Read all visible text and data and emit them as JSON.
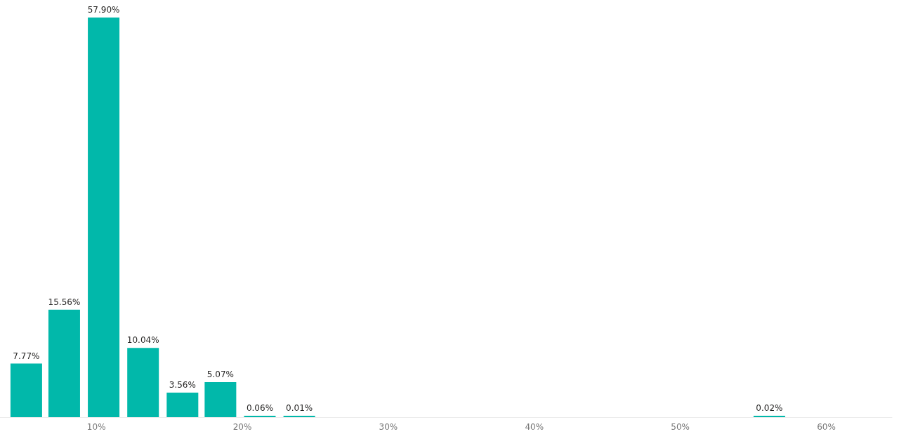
{
  "chart_data": {
    "type": "bar",
    "x": [
      5.2,
      7.8,
      10.5,
      13.2,
      15.9,
      18.5,
      21.2,
      23.9,
      56.1
    ],
    "values": [
      7.77,
      15.56,
      57.9,
      10.04,
      3.56,
      5.07,
      0.06,
      0.01,
      0.02
    ],
    "value_labels": [
      "7.77%",
      "15.56%",
      "57.90%",
      "10.04%",
      "3.56%",
      "5.07%",
      "0.06%",
      "0.01%",
      "0.02%"
    ],
    "color": "#01b8aa",
    "xlim": [
      3.4,
      64.5
    ],
    "ylim": [
      0,
      57.9
    ],
    "xticks": [
      {
        "value": 10,
        "label": "10%"
      },
      {
        "value": 20,
        "label": "20%"
      },
      {
        "value": 30,
        "label": "30%"
      },
      {
        "value": 40,
        "label": "40%"
      },
      {
        "value": 50,
        "label": "50%"
      },
      {
        "value": 60,
        "label": "60%"
      }
    ],
    "tick_labels": "x",
    "grid": false
  }
}
